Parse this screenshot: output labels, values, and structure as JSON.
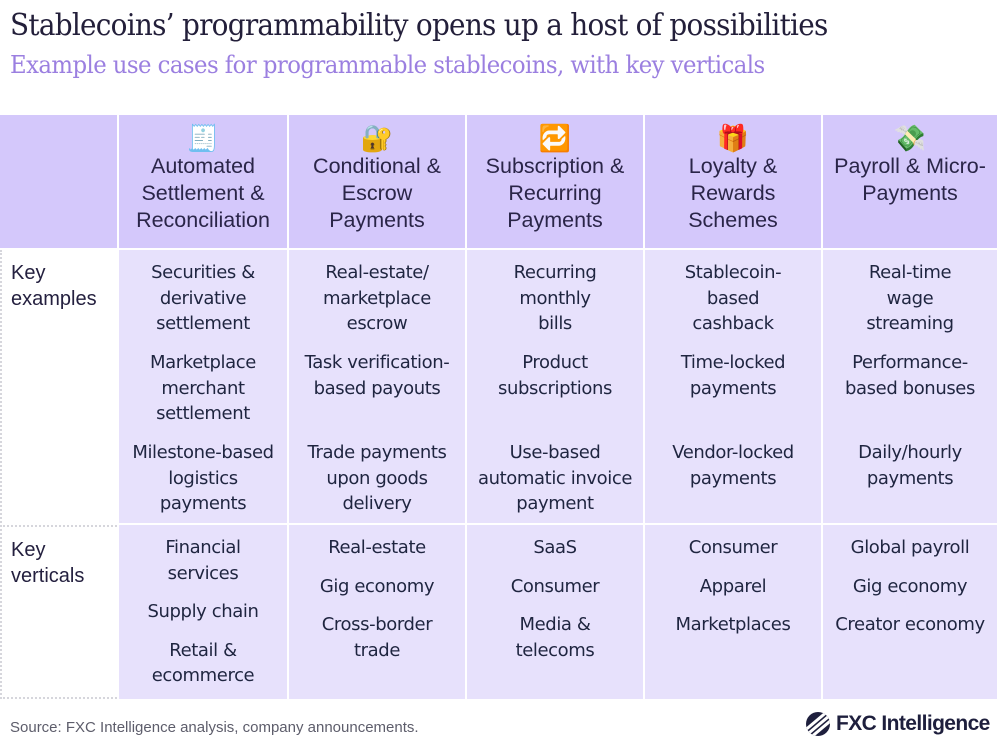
{
  "header": {
    "title": "Stablecoins’ programmability opens up a host of possibilities",
    "subtitle": "Example use cases for programmable stablecoins, with key verticals"
  },
  "colors": {
    "header_bg": "#d4c8fb",
    "body_bg": "#e7e1fc",
    "subtitle": "#9b7fe0",
    "text": "#24203f"
  },
  "table": {
    "row_labels": {
      "examples": "Key\nexamples",
      "verticals": "Key\nverticals"
    },
    "columns": [
      {
        "icon": "🧾",
        "icon_name": "receipt-icon",
        "label": "Automated Settlement & Reconciliation",
        "examples": [
          "Securities &\nderivative\nsettlement",
          "Marketplace\nmerchant\nsettlement",
          "Milestone-based\nlogistics\npayments"
        ],
        "verticals": [
          "Financial\nservices",
          "Supply chain",
          "Retail &\necommerce"
        ]
      },
      {
        "icon": "🔐",
        "icon_name": "lock-key-icon",
        "label": "Conditional & Escrow Payments",
        "examples": [
          "Real-estate/\nmarketplace\nescrow",
          "Task verification-\nbased payouts",
          "Trade payments\nupon goods\ndelivery"
        ],
        "verticals": [
          "Real-estate",
          "Gig economy",
          "Cross-border\ntrade"
        ]
      },
      {
        "icon": "🔁",
        "icon_name": "repeat-arrows-icon",
        "label": "Subscription & Recurring Payments",
        "examples": [
          "Recurring\nmonthly\nbills",
          "Product\nsubscriptions",
          "Use-based\nautomatic invoice\npayment"
        ],
        "verticals": [
          "SaaS",
          "Consumer",
          "Media &\ntelecoms"
        ]
      },
      {
        "icon": "🎁",
        "icon_name": "gift-icon",
        "label": "Loyalty & Rewards Schemes",
        "examples": [
          "Stablecoin-\nbased\ncashback",
          "Time-locked\npayments",
          "Vendor-locked\npayments"
        ],
        "verticals": [
          "Consumer",
          "Apparel",
          "Marketplaces"
        ]
      },
      {
        "icon": "💸",
        "icon_name": "money-wings-icon",
        "label": "Payroll & Micro-Payments",
        "examples": [
          "Real-time\nwage\nstreaming",
          "Performance-\nbased bonuses",
          "Daily/hourly\npayments"
        ],
        "verticals": [
          "Global payroll",
          "Gig economy",
          "Creator economy"
        ]
      }
    ]
  },
  "footer": {
    "source": "Source: FXC Intelligence analysis, company announcements.",
    "logo_text": "FXC Intelligence"
  }
}
